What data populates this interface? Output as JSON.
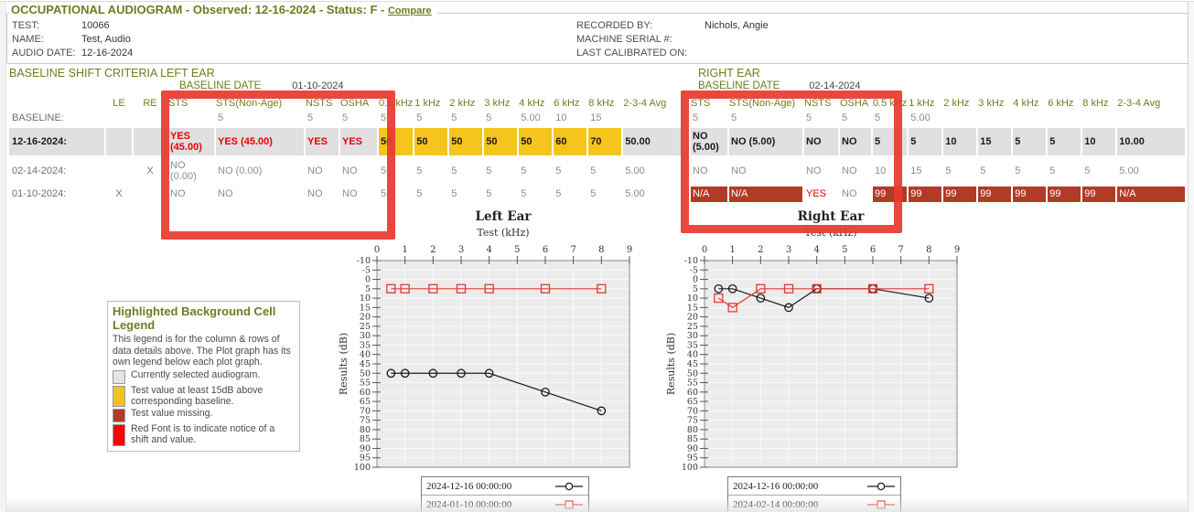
{
  "colors": {
    "accent_green": "#6d7d1f",
    "selected_gray": "#e0e0e0",
    "highlight_yellow": "#f5c51d",
    "missing_red": "#b23b28",
    "alert_red_font": "#e80000",
    "annotation_red": "#e8392f",
    "series_black": "#1a1a1a",
    "series_red": "#e23b34"
  },
  "header": {
    "title": "OCCUPATIONAL AUDIOGRAM - Observed: 12-16-2024 - Status: F -",
    "compare_link": "Compare",
    "fields_left": [
      {
        "label": "TEST:",
        "value": "10066"
      },
      {
        "label": "NAME:",
        "value": "Test, Audio"
      },
      {
        "label": "AUDIO DATE:",
        "value": "12-16-2024"
      }
    ],
    "fields_right": [
      {
        "label": "RECORDED BY:",
        "value": "Nichols, Angie"
      },
      {
        "label": "MACHINE SERIAL #:",
        "value": ""
      },
      {
        "label": "LAST CALIBRATED ON:",
        "value": ""
      }
    ]
  },
  "sections": {
    "left": {
      "title": "BASELINE SHIFT CRITERIA LEFT EAR",
      "baseline_date_label": "BASELINE DATE",
      "baseline_date": "01-10-2024"
    },
    "right": {
      "title": "RIGHT EAR",
      "baseline_date_label": "BASELINE DATE",
      "baseline_date": "02-14-2024"
    }
  },
  "left_table": {
    "columns": [
      "LE",
      "RE",
      "STS",
      "STS(Non-Age)",
      "NSTS",
      "OSHA",
      "0.5 kHz",
      "1 kHz",
      "2 kHz",
      "3 kHz",
      "4 kHz",
      "6 kHz",
      "8 kHz",
      "2-3-4 Avg"
    ],
    "rows": [
      {
        "label": "BASELINE:",
        "le": "",
        "re": "",
        "selected": false,
        "cells": [
          "",
          "5",
          "5",
          "5",
          "5",
          "5",
          "5",
          "5",
          "5.00",
          "10",
          "15",
          ""
        ],
        "cell_styles": [
          null,
          null,
          null,
          null,
          null,
          null,
          null,
          null,
          null,
          null,
          null,
          null
        ]
      },
      {
        "label": "12-16-2024:",
        "le": "",
        "re": "",
        "selected": true,
        "cells": [
          "YES (45.00)",
          "YES (45.00)",
          "YES",
          "YES",
          "50",
          "50",
          "50",
          "50",
          "50",
          "60",
          "70",
          "50.00"
        ],
        "cell_styles": [
          "red",
          "red",
          "red",
          "red",
          "hl",
          "hl",
          "hl",
          "hl",
          "hl",
          "hl",
          "hl",
          null
        ]
      },
      {
        "label": "02-14-2024:",
        "le": "",
        "re": "X",
        "selected": false,
        "cells": [
          "NO (0.00)",
          "NO (0.00)",
          "NO",
          "NO",
          "5",
          "5",
          "5",
          "5",
          "5",
          "5",
          "5",
          "5.00"
        ],
        "cell_styles": [
          null,
          null,
          null,
          null,
          null,
          null,
          null,
          null,
          null,
          null,
          null,
          null
        ]
      },
      {
        "label": "01-10-2024:",
        "le": "X",
        "re": "",
        "selected": false,
        "cells": [
          "NO",
          "NO",
          "NO",
          "NO",
          "5",
          "5",
          "5",
          "5",
          "5",
          "5",
          "5",
          "5.00"
        ],
        "cell_styles": [
          null,
          null,
          null,
          null,
          null,
          null,
          null,
          null,
          null,
          null,
          null,
          null
        ]
      }
    ]
  },
  "right_table": {
    "columns": [
      "STS",
      "STS(Non-Age)",
      "NSTS",
      "OSHA",
      "0.5 kHz",
      "1 kHz",
      "2 kHz",
      "3 kHz",
      "4 kHz",
      "6 kHz",
      "8 kHz",
      "2-3-4 Avg"
    ],
    "rows": [
      {
        "label": "BASELINE:",
        "selected": false,
        "cells": [
          "5",
          "5",
          "5",
          "5",
          "5",
          "5.00",
          "",
          "",
          "",
          "",
          "",
          ""
        ],
        "cell_styles": [
          null,
          null,
          null,
          null,
          null,
          null,
          null,
          null,
          null,
          null,
          null,
          null
        ]
      },
      {
        "label": "12-16-2024:",
        "selected": true,
        "cells": [
          "NO (5.00)",
          "NO (5.00)",
          "NO",
          "NO",
          "5",
          "5",
          "10",
          "15",
          "5",
          "5",
          "10",
          "10.00"
        ],
        "cell_styles": [
          null,
          null,
          null,
          null,
          null,
          null,
          null,
          null,
          null,
          null,
          null,
          null
        ]
      },
      {
        "label": "02-14-2024:",
        "selected": false,
        "cells": [
          "NO",
          "NO",
          "NO",
          "NO",
          "10",
          "15",
          "5",
          "5",
          "5",
          "5",
          "5",
          "5.00"
        ],
        "cell_styles": [
          null,
          null,
          null,
          null,
          null,
          null,
          null,
          null,
          null,
          null,
          null,
          null
        ]
      },
      {
        "label": "01-10-2024:",
        "selected": false,
        "cells": [
          "N/A",
          "N/A",
          "YES",
          "NO",
          "99",
          "99",
          "99",
          "99",
          "99",
          "99",
          "99",
          "N/A"
        ],
        "cell_styles": [
          "miss",
          "miss",
          "redfont",
          null,
          "miss",
          "miss",
          "miss",
          "miss",
          "miss",
          "miss",
          "miss",
          "miss"
        ]
      }
    ]
  },
  "cell_legend": {
    "title": "Highlighted Background Cell Legend",
    "intro": "This legend is for the column & rows of data details above. The Plot graph has its own legend below each plot graph.",
    "items": [
      {
        "color": "#e4e4e4",
        "text": "Currently selected audiogram."
      },
      {
        "color": "#f0c41e",
        "text": "Test value at least 15dB above corresponding baseline."
      },
      {
        "color": "#b23b28",
        "text": "Test value missing."
      },
      {
        "color": "#f50505",
        "text": "Red Font is to indicate notice of a shift and value."
      }
    ]
  },
  "chart_data": [
    {
      "type": "line",
      "title": "Left Ear",
      "xlabel": "Test (kHz)",
      "ylabel": "Results (dB)",
      "x": [
        0.5,
        1,
        2,
        3,
        4,
        6,
        8
      ],
      "xlim": [
        0,
        9
      ],
      "ylim": [
        -10,
        100
      ],
      "y_inverted": true,
      "x_axis_position": "top",
      "grid": true,
      "legend_position": "below",
      "series": [
        {
          "name": "2024-12-16 00:00:00",
          "color": "#1a1a1a",
          "marker": "circle",
          "values": [
            50,
            50,
            50,
            50,
            50,
            60,
            70
          ]
        },
        {
          "name": "2024-01-10 00:00:00",
          "color": "#e23b34",
          "marker": "square",
          "values": [
            5,
            5,
            5,
            5,
            5,
            5,
            5
          ]
        }
      ]
    },
    {
      "type": "line",
      "title": "Right Ear",
      "xlabel": "Test (kHz)",
      "ylabel": "Results (dB)",
      "x": [
        0.5,
        1,
        2,
        3,
        4,
        6,
        8
      ],
      "xlim": [
        0,
        9
      ],
      "ylim": [
        -10,
        100
      ],
      "y_inverted": true,
      "x_axis_position": "top",
      "grid": true,
      "legend_position": "below",
      "series": [
        {
          "name": "2024-12-16 00:00:00",
          "color": "#1a1a1a",
          "marker": "circle",
          "values": [
            5,
            5,
            10,
            15,
            5,
            5,
            10
          ]
        },
        {
          "name": "2024-02-14 00:00:00",
          "color": "#e23b34",
          "marker": "square",
          "values": [
            10,
            15,
            5,
            5,
            5,
            5,
            5
          ]
        }
      ]
    }
  ]
}
